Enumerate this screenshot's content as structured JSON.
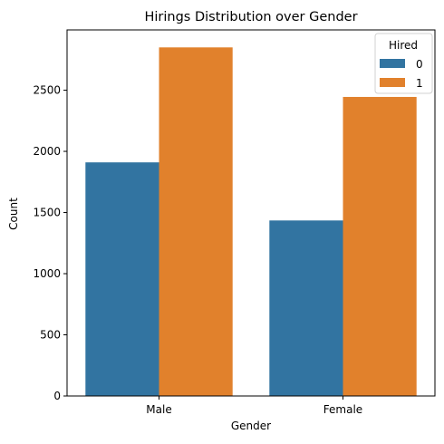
{
  "chart_data": {
    "type": "bar",
    "title": "Hirings Distribution over Gender",
    "xlabel": "Gender",
    "ylabel": "Count",
    "categories": [
      "Male",
      "Female"
    ],
    "series": [
      {
        "name": "0",
        "values": [
          1910,
          1435
        ],
        "color": "#3274a1"
      },
      {
        "name": "1",
        "values": [
          2850,
          2445
        ],
        "color": "#e1812c"
      }
    ],
    "ylim": [
      0,
      2993
    ],
    "yticks": [
      0,
      500,
      1000,
      1500,
      2000,
      2500
    ],
    "grid": false,
    "legend": {
      "title": "Hired",
      "placement": "top-right"
    }
  }
}
